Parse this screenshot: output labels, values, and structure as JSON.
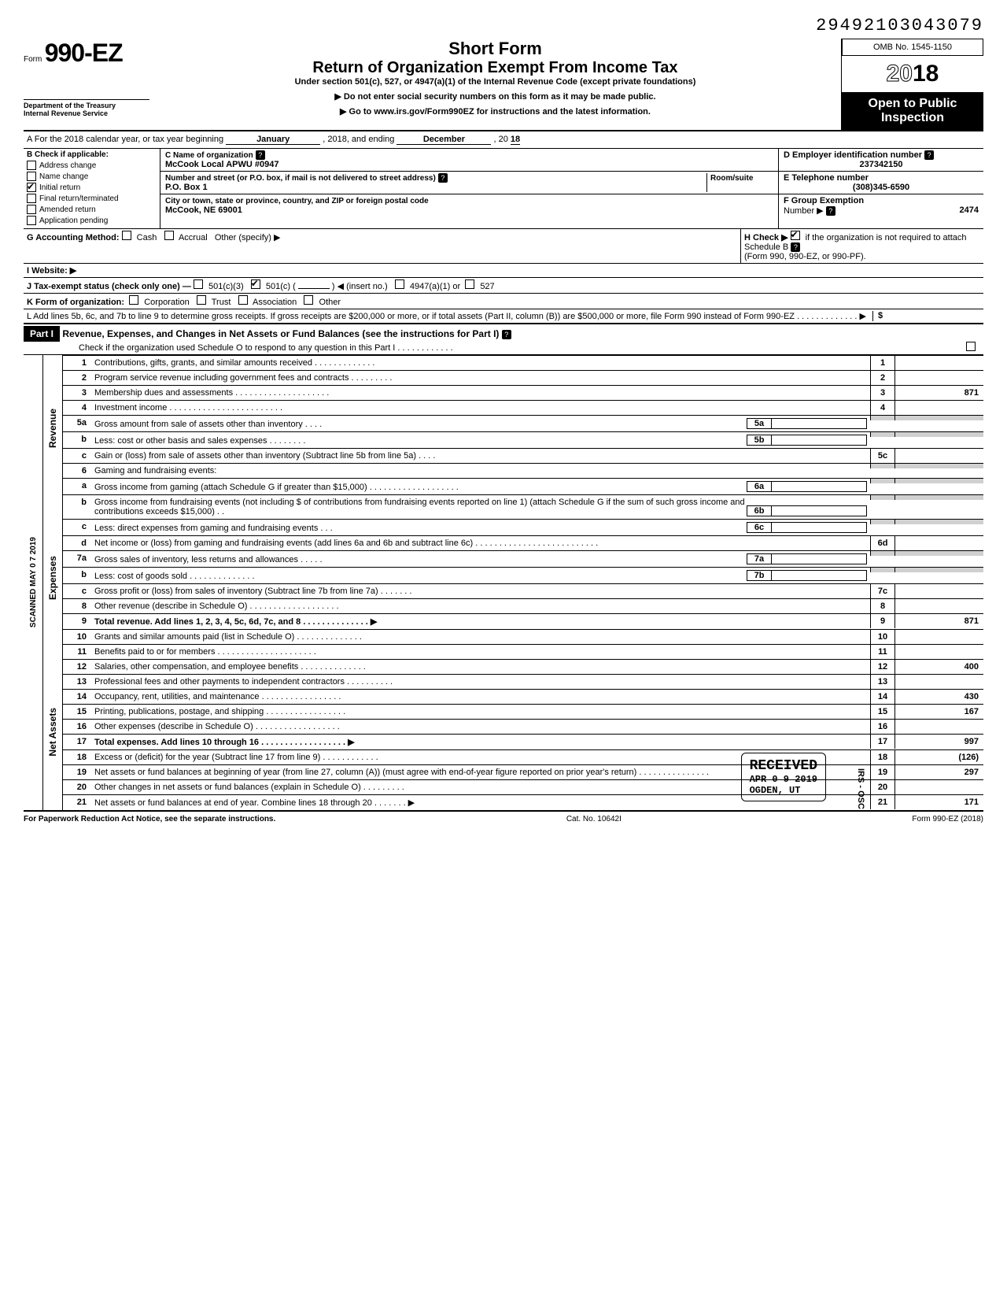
{
  "doc_id": "29492103043079",
  "form": {
    "label": "Form",
    "number": "990-EZ",
    "dept1": "Department of the Treasury",
    "dept2": "Internal Revenue Service"
  },
  "title": {
    "short": "Short Form",
    "main": "Return of Organization Exempt From Income Tax",
    "sub": "Under section 501(c), 527, or 4947(a)(1) of the Internal Revenue Code (except private foundations)",
    "warn": "▶ Do not enter social security numbers on this form as it may be made public.",
    "link": "▶ Go to www.irs.gov/Form990EZ for instructions and the latest information."
  },
  "header_right": {
    "omb": "OMB No. 1545-1150",
    "year_prefix": "20",
    "year_suffix": "18",
    "open": "Open to Public",
    "inspection": "Inspection"
  },
  "row_a": {
    "prefix": "A  For the  2018 calendar year, or tax year beginning",
    "begin": "January",
    "mid": ", 2018, and ending",
    "end_month": "December",
    "end_yr_prefix": ", 20",
    "end_yr": "18"
  },
  "col_b": {
    "header": "B  Check if applicable:",
    "items": [
      "Address change",
      "Name change",
      "Initial return",
      "Final return/terminated",
      "Amended return",
      "Application pending"
    ],
    "checked_idx": 2
  },
  "col_c": {
    "name_lbl": "C  Name of organization",
    "name_val": "McCook Local APWU #0947",
    "street_lbl": "Number and street (or P.O. box, if mail is not delivered to street address)",
    "room_lbl": "Room/suite",
    "street_val": "P.O. Box 1",
    "city_lbl": "City or town, state or province, country, and ZIP or foreign postal code",
    "city_val": "McCook, NE  69001"
  },
  "col_d": {
    "ein_lbl": "D Employer identification number",
    "ein_val": "237342150",
    "tel_lbl": "E Telephone number",
    "tel_val": "(308)345-6590",
    "grp_lbl": "F Group Exemption",
    "grp_num_lbl": "Number ▶",
    "grp_val": "2474"
  },
  "row_g": {
    "lbl": "G  Accounting Method:",
    "opts": [
      "Cash",
      "Accrual",
      "Other (specify) ▶"
    ]
  },
  "row_h": {
    "text": "H  Check ▶",
    "after": "if the organization is not required to attach Schedule B",
    "after2": "(Form 990, 990-EZ, or 990-PF).",
    "checked": true
  },
  "row_i": "I   Website: ▶",
  "row_j": {
    "lbl": "J  Tax-exempt status (check only one) —",
    "o1": "501(c)(3)",
    "o2": "501(c) (",
    "o2_after": ") ◀ (insert no.)",
    "o3": "4947(a)(1) or",
    "o4": "527",
    "checked_idx": 1
  },
  "row_k": {
    "lbl": "K  Form of organization:",
    "opts": [
      "Corporation",
      "Trust",
      "Association",
      "Other"
    ]
  },
  "row_l": "L  Add lines 5b, 6c, and 7b to line 9 to determine gross receipts. If gross receipts are $200,000 or more, or if total assets (Part II, column (B)) are $500,000 or more, file Form 990 instead of Form 990-EZ  .   .   .   .   .   .   .   .   .   .   .   .   .  ▶",
  "row_l_sym": "$",
  "part1": {
    "label": "Part I",
    "title": "Revenue, Expenses, and Changes in Net Assets or Fund Balances (see the instructions for Part I)",
    "check_line": "Check if the organization used Schedule O to respond to any question in this Part I  .   .   .   .   .   .   .   .   .   .   .   ."
  },
  "side_labels": {
    "scanned": "SCANNED MAY 0 7 2019",
    "revenue": "Revenue",
    "expenses": "Expenses",
    "netassets": "Net Assets"
  },
  "lines": {
    "l1": {
      "n": "1",
      "t": "Contributions, gifts, grants, and similar amounts received .   .   .   .   .   .   .   .   .   .   .   .   .",
      "box": "1",
      "amt": ""
    },
    "l2": {
      "n": "2",
      "t": "Program service revenue including government fees and contracts    .   .   .   .   .   .   .   .   .",
      "box": "2",
      "amt": ""
    },
    "l3": {
      "n": "3",
      "t": "Membership dues and assessments .   .   .   .   .   .   .   .   .   .   .   .   .   .   .   .   .   .   .   .",
      "box": "3",
      "amt": "871"
    },
    "l4": {
      "n": "4",
      "t": "Investment income    .   .   .   .   .   .   .   .   .   .   .   .   .   .   .   .   .   .   .   .   .   .   .   .",
      "box": "4",
      "amt": ""
    },
    "l5a": {
      "n": "5a",
      "t": "Gross amount from sale of assets other than inventory    .   .   .   .",
      "sub": "5a"
    },
    "l5b": {
      "n": "b",
      "t": "Less: cost or other basis and sales expenses .   .   .   .   .   .   .   .",
      "sub": "5b"
    },
    "l5c": {
      "n": "c",
      "t": "Gain or (loss) from sale of assets other than inventory (Subtract line 5b from line 5a)  .   .   .   .",
      "box": "5c",
      "amt": ""
    },
    "l6": {
      "n": "6",
      "t": "Gaming and fundraising events:"
    },
    "l6a": {
      "n": "a",
      "t": "Gross income from gaming (attach Schedule G if greater than $15,000)  .   .   .   .   .   .   .   .   .   .   .   .   .   .   .   .   .   .   .",
      "sub": "6a"
    },
    "l6b": {
      "n": "b",
      "t": "Gross income from fundraising events (not including  $                       of contributions from fundraising events reported on line 1) (attach Schedule G if the sum of such gross income and contributions exceeds $15,000)  .   .",
      "sub": "6b"
    },
    "l6c": {
      "n": "c",
      "t": "Less: direct expenses from gaming and fundraising events   .   .   .",
      "sub": "6c"
    },
    "l6d": {
      "n": "d",
      "t": "Net income or (loss) from gaming and fundraising events (add lines 6a and 6b and subtract line 6c)    .   .   .   .   .   .   .   .   .   .   .   .   .   .   .   .   .   .   .   .   .   .   .   .   .   .",
      "box": "6d",
      "amt": ""
    },
    "l7a": {
      "n": "7a",
      "t": "Gross sales of inventory, less returns and allowances  .   .   .   .   .",
      "sub": "7a"
    },
    "l7b": {
      "n": "b",
      "t": "Less: cost of goods sold     .   .   .   .   .   .   .   .   .   .   .   .   .   .",
      "sub": "7b"
    },
    "l7c": {
      "n": "c",
      "t": "Gross profit or (loss) from sales of inventory (Subtract line 7b from line 7a)   .   .   .   .   .   .   .",
      "box": "7c",
      "amt": ""
    },
    "l8": {
      "n": "8",
      "t": "Other revenue (describe in Schedule O) .   .   .   .   .   .   .   .   .   .   .   .   .   .   .   .   .   .   .",
      "box": "8",
      "amt": ""
    },
    "l9": {
      "n": "9",
      "t": "Total revenue. Add lines 1, 2, 3, 4, 5c, 6d, 7c, and 8    .   .   .   .   .   .   .   .   .   .   .   .   .   .  ▶",
      "box": "9",
      "amt": "871",
      "bold": true
    },
    "l10": {
      "n": "10",
      "t": "Grants and similar amounts paid (list in Schedule O)   .   .   .   .   .   .   .   .   .   .   .   .   .   .",
      "box": "10",
      "amt": ""
    },
    "l11": {
      "n": "11",
      "t": "Benefits paid to or for members   .   .   .   .   .   .   .   .   .   .   .   .   .   .   .   .   .   .   .   .   .",
      "box": "11",
      "amt": ""
    },
    "l12": {
      "n": "12",
      "t": "Salaries, other compensation, and employee benefits   .   .   .   .   .   .   .   .   .   .   .   .   .   .",
      "box": "12",
      "amt": "400"
    },
    "l13": {
      "n": "13",
      "t": "Professional fees and other payments to independent contractors   .   .   .   .   .   .   .   .   .   .",
      "box": "13",
      "amt": ""
    },
    "l14": {
      "n": "14",
      "t": "Occupancy, rent, utilities, and maintenance    .   .   .   .   .   .   .   .   .   .   .   .   .   .   .   .   .",
      "box": "14",
      "amt": "430"
    },
    "l15": {
      "n": "15",
      "t": "Printing, publications, postage, and shipping  .   .   .   .   .   .   .   .   .   .   .   .   .   .   .   .   .",
      "box": "15",
      "amt": "167"
    },
    "l16": {
      "n": "16",
      "t": "Other expenses (describe in Schedule O)   .   .   .   .   .   .   .   .   .   .   .   .   .   .   .   .   .   .",
      "box": "16",
      "amt": ""
    },
    "l17": {
      "n": "17",
      "t": "Total expenses. Add lines 10 through 16  .   .   .   .   .   .   .   .   .   .   .   .   .   .   .   .   .   .  ▶",
      "box": "17",
      "amt": "997",
      "bold": true
    },
    "l18": {
      "n": "18",
      "t": "Excess or (deficit) for the year (Subtract line 17 from line 9)    .   .   .   .   .   .   .   .   .   .   .   .",
      "box": "18",
      "amt": "126",
      "neg": true
    },
    "l19": {
      "n": "19",
      "t": "Net assets or fund balances at beginning of year (from line 27, column (A)) (must agree with end-of-year figure reported on prior year's return)    .   .   .   .   .   .   .   .   .   .   .   .   .   .   .",
      "box": "19",
      "amt": "297"
    },
    "l20": {
      "n": "20",
      "t": "Other changes in net assets or fund balances (explain in Schedule O) .   .   .   .   .   .   .   .   .",
      "box": "20",
      "amt": ""
    },
    "l21": {
      "n": "21",
      "t": "Net assets or fund balances at end of year. Combine lines 18 through 20   .   .   .   .   .   .   .  ▶",
      "box": "21",
      "amt": "171"
    }
  },
  "footer": {
    "left": "For Paperwork Reduction Act Notice, see the separate instructions.",
    "cat": "Cat. No. 10642I",
    "right": "Form 990-EZ (2018)"
  },
  "stamps": {
    "received": "RECEIVED",
    "date": "APR 0 9 2019",
    "ogden": "OGDEN, UT",
    "irs": "IRS - OSC"
  }
}
